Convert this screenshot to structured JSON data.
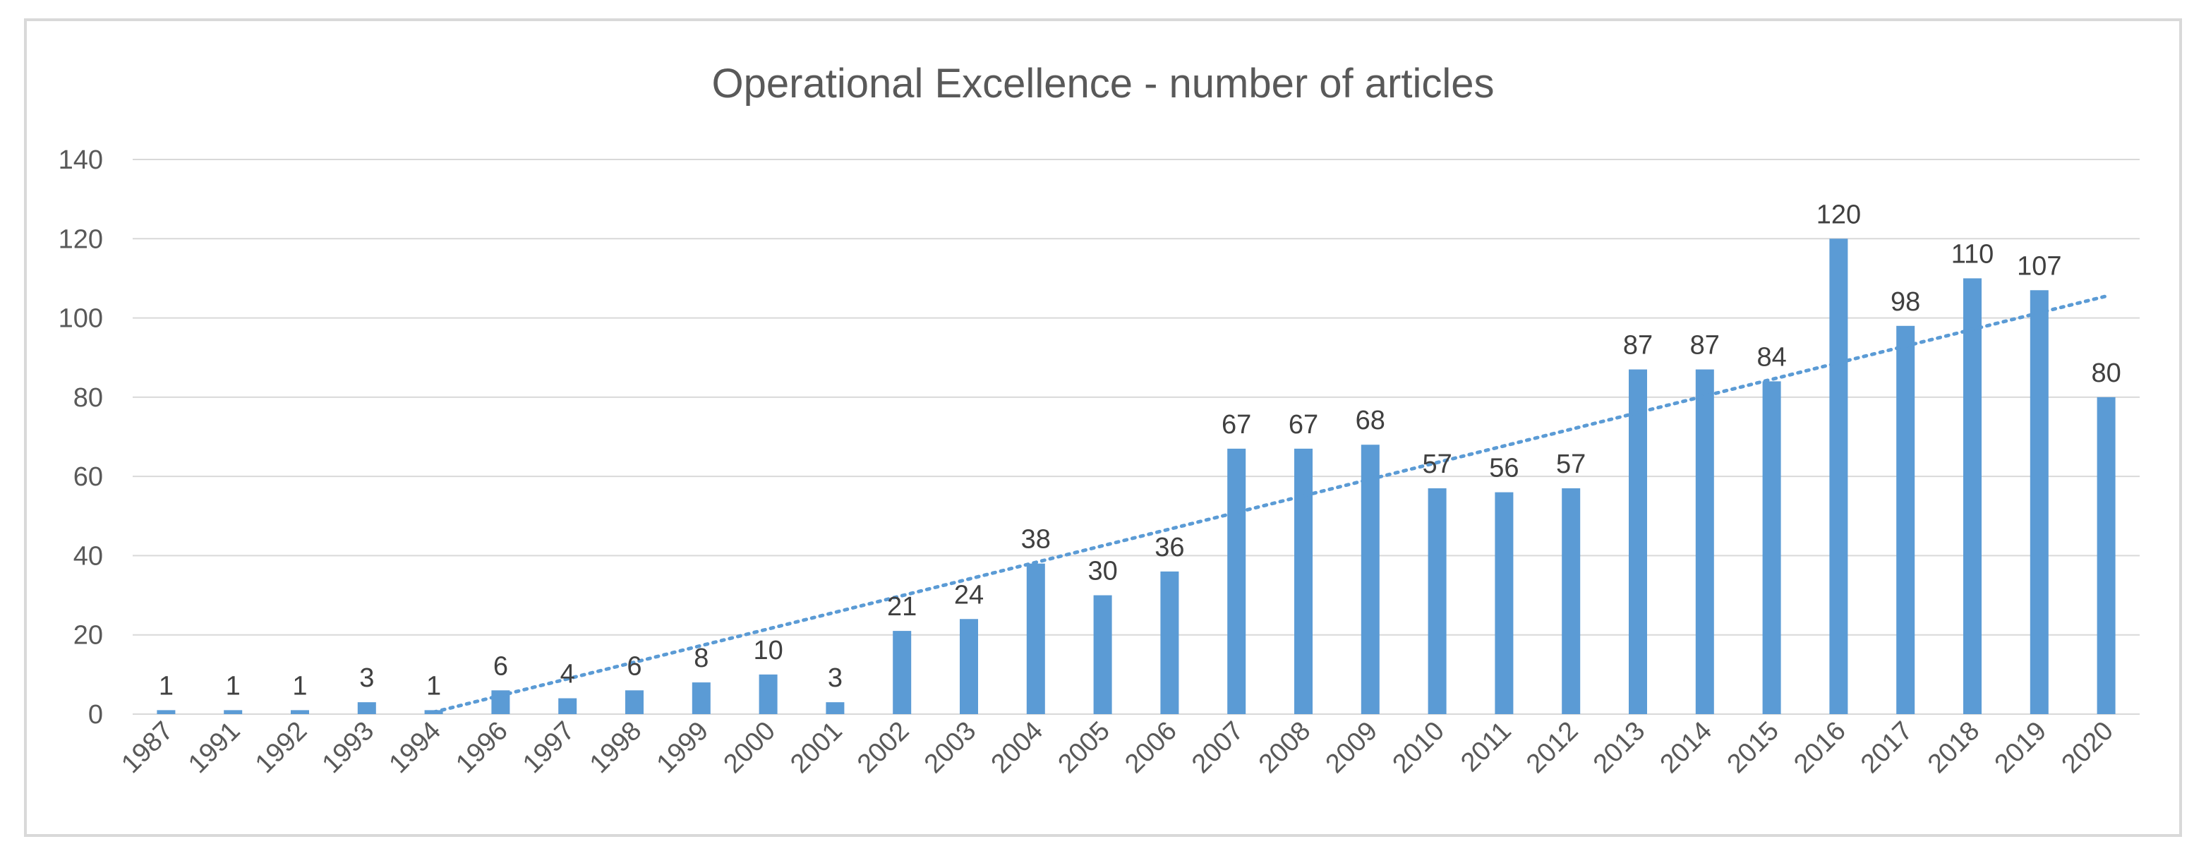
{
  "chart_data": {
    "type": "bar",
    "title": "Operational Excellence - number of articles",
    "xlabel": "",
    "ylabel": "",
    "ylim": [
      0,
      140
    ],
    "yticks": [
      0,
      20,
      40,
      60,
      80,
      100,
      120,
      140
    ],
    "grid": true,
    "legend": "none",
    "categories": [
      "1987",
      "1991",
      "1992",
      "1993",
      "1994",
      "1996",
      "1997",
      "1998",
      "1999",
      "2000",
      "2001",
      "2002",
      "2003",
      "2004",
      "2005",
      "2006",
      "2007",
      "2008",
      "2009",
      "2010",
      "2011",
      "2012",
      "2013",
      "2014",
      "2015",
      "2016",
      "2017",
      "2018",
      "2019",
      "2020"
    ],
    "values": [
      1,
      1,
      1,
      3,
      1,
      6,
      4,
      6,
      8,
      10,
      3,
      21,
      24,
      38,
      30,
      36,
      67,
      67,
      68,
      57,
      56,
      57,
      87,
      87,
      84,
      120,
      98,
      110,
      107,
      80
    ],
    "series": [
      {
        "name": "number of articles",
        "values": [
          1,
          1,
          1,
          3,
          1,
          6,
          4,
          6,
          8,
          10,
          3,
          21,
          24,
          38,
          30,
          36,
          67,
          67,
          68,
          57,
          56,
          57,
          87,
          87,
          84,
          120,
          98,
          110,
          107,
          80
        ]
      }
    ],
    "trendline": {
      "type": "linear",
      "style": "dotted",
      "start_category": "1994",
      "start_value": 0.5,
      "end_category": "2020",
      "end_value": 105.5
    },
    "colors": {
      "bar": "#5b9bd5",
      "trend": "#5b9bd5",
      "grid": "#d9d9d9",
      "axis": "#d9d9d9"
    }
  }
}
